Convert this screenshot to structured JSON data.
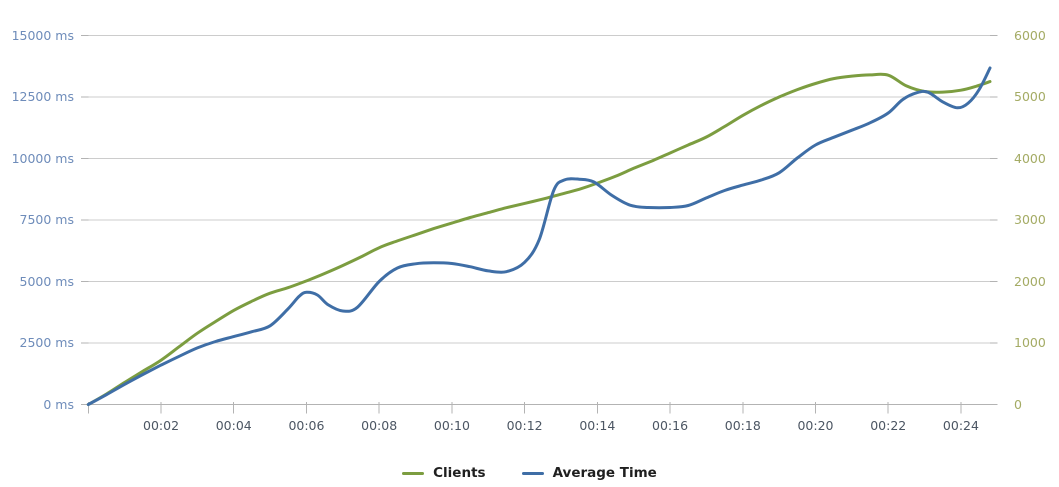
{
  "chart_data": {
    "type": "line",
    "title": "",
    "background_color": "#FFFFFF",
    "grid": {
      "on": true,
      "gridline_color": "#CCCCCC",
      "axis_line_color": "#B3B3B3",
      "tick_color": "#B3B3B3"
    },
    "x_axis": {
      "range_minutes": [
        0,
        24.8
      ],
      "tick_label_color": "#4C5663",
      "ticks": [
        {
          "t": 2,
          "label": "00:02"
        },
        {
          "t": 4,
          "label": "00:04"
        },
        {
          "t": 6,
          "label": "00:06"
        },
        {
          "t": 8,
          "label": "00:08"
        },
        {
          "t": 10,
          "label": "00:10"
        },
        {
          "t": 12,
          "label": "00:12"
        },
        {
          "t": 14,
          "label": "00:14"
        },
        {
          "t": 16,
          "label": "00:16"
        },
        {
          "t": 18,
          "label": "00:18"
        },
        {
          "t": 20,
          "label": "00:20"
        },
        {
          "t": 22,
          "label": "00:22"
        },
        {
          "t": 24,
          "label": "00:24"
        }
      ]
    },
    "left_axis": {
      "unit": "ms",
      "range": [
        0,
        15000
      ],
      "tick_label_color": "#6E8CBA",
      "ticks": [
        {
          "v": 0,
          "label": "0 ms"
        },
        {
          "v": 2500,
          "label": "2500 ms"
        },
        {
          "v": 5000,
          "label": "5000 ms"
        },
        {
          "v": 7500,
          "label": "7500 ms"
        },
        {
          "v": 10000,
          "label": "10000 ms"
        },
        {
          "v": 12500,
          "label": "12500 ms"
        },
        {
          "v": 15000,
          "label": "15000 ms"
        }
      ]
    },
    "right_axis": {
      "unit": "",
      "range": [
        0,
        6000
      ],
      "tick_label_color": "#A4AB64",
      "ticks": [
        {
          "v": 0,
          "label": "0"
        },
        {
          "v": 1000,
          "label": "1000"
        },
        {
          "v": 2000,
          "label": "2000"
        },
        {
          "v": 3000,
          "label": "3000"
        },
        {
          "v": 4000,
          "label": "4000"
        },
        {
          "v": 5000,
          "label": "5000"
        },
        {
          "v": 6000,
          "label": "6000"
        }
      ]
    },
    "legend_position": "bottom-center",
    "series": [
      {
        "name": "Clients",
        "axis": "right",
        "color": "#7C9D40",
        "points": [
          [
            0,
            0
          ],
          [
            0.5,
            170
          ],
          [
            1,
            360
          ],
          [
            1.5,
            540
          ],
          [
            2,
            720
          ],
          [
            2.5,
            940
          ],
          [
            3,
            1160
          ],
          [
            3.5,
            1350
          ],
          [
            4,
            1530
          ],
          [
            4.5,
            1680
          ],
          [
            5,
            1810
          ],
          [
            5.5,
            1900
          ],
          [
            6,
            2010
          ],
          [
            6.5,
            2130
          ],
          [
            7,
            2260
          ],
          [
            7.5,
            2400
          ],
          [
            8,
            2550
          ],
          [
            8.5,
            2660
          ],
          [
            9,
            2760
          ],
          [
            9.5,
            2860
          ],
          [
            10,
            2950
          ],
          [
            10.5,
            3040
          ],
          [
            11,
            3120
          ],
          [
            11.5,
            3200
          ],
          [
            12,
            3270
          ],
          [
            12.5,
            3340
          ],
          [
            13,
            3420
          ],
          [
            13.5,
            3500
          ],
          [
            14,
            3600
          ],
          [
            14.5,
            3710
          ],
          [
            15,
            3840
          ],
          [
            15.5,
            3960
          ],
          [
            16,
            4090
          ],
          [
            16.5,
            4220
          ],
          [
            17,
            4350
          ],
          [
            17.5,
            4520
          ],
          [
            18,
            4700
          ],
          [
            18.5,
            4860
          ],
          [
            19,
            5000
          ],
          [
            19.5,
            5120
          ],
          [
            20,
            5220
          ],
          [
            20.5,
            5300
          ],
          [
            21,
            5340
          ],
          [
            21.5,
            5360
          ],
          [
            22,
            5355
          ],
          [
            22.5,
            5180
          ],
          [
            23,
            5090
          ],
          [
            23.5,
            5080
          ],
          [
            24,
            5110
          ],
          [
            24.4,
            5170
          ],
          [
            24.8,
            5250
          ]
        ]
      },
      {
        "name": "Average Time",
        "axis": "left",
        "color": "#3F6EA6",
        "points": [
          [
            0,
            0
          ],
          [
            0.5,
            400
          ],
          [
            1,
            820
          ],
          [
            1.5,
            1220
          ],
          [
            2,
            1600
          ],
          [
            2.5,
            1960
          ],
          [
            3,
            2300
          ],
          [
            3.5,
            2560
          ],
          [
            4,
            2760
          ],
          [
            4.5,
            2960
          ],
          [
            5,
            3200
          ],
          [
            5.5,
            3900
          ],
          [
            5.8,
            4400
          ],
          [
            6,
            4560
          ],
          [
            6.3,
            4450
          ],
          [
            6.6,
            4050
          ],
          [
            7,
            3800
          ],
          [
            7.4,
            3950
          ],
          [
            8,
            5000
          ],
          [
            8.5,
            5550
          ],
          [
            9,
            5720
          ],
          [
            9.5,
            5760
          ],
          [
            10,
            5730
          ],
          [
            10.5,
            5600
          ],
          [
            11,
            5430
          ],
          [
            11.5,
            5400
          ],
          [
            12,
            5780
          ],
          [
            12.4,
            6700
          ],
          [
            12.8,
            8700
          ],
          [
            13.1,
            9130
          ],
          [
            13.5,
            9160
          ],
          [
            13.9,
            9050
          ],
          [
            14.4,
            8500
          ],
          [
            14.9,
            8100
          ],
          [
            15.4,
            8010
          ],
          [
            16,
            8010
          ],
          [
            16.5,
            8090
          ],
          [
            17,
            8400
          ],
          [
            17.5,
            8700
          ],
          [
            18,
            8920
          ],
          [
            18.5,
            9120
          ],
          [
            19,
            9420
          ],
          [
            19.5,
            10020
          ],
          [
            20,
            10550
          ],
          [
            20.5,
            10860
          ],
          [
            21,
            11150
          ],
          [
            21.5,
            11450
          ],
          [
            22,
            11850
          ],
          [
            22.4,
            12400
          ],
          [
            22.8,
            12680
          ],
          [
            23.1,
            12690
          ],
          [
            23.5,
            12300
          ],
          [
            23.9,
            12060
          ],
          [
            24.2,
            12250
          ],
          [
            24.5,
            12800
          ],
          [
            24.8,
            13680
          ]
        ]
      }
    ]
  }
}
